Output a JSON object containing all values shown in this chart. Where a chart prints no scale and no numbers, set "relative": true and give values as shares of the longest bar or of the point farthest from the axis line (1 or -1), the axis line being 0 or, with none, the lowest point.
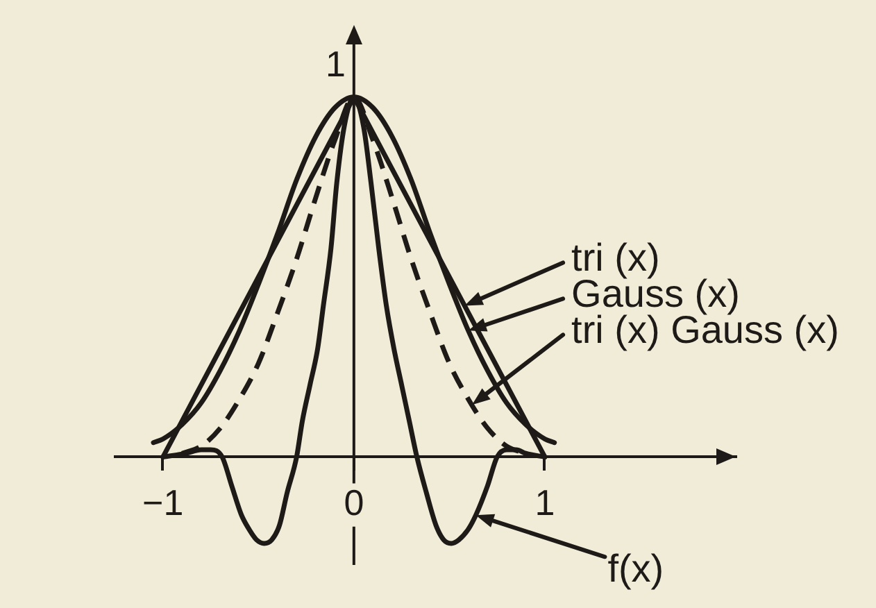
{
  "chart_data": {
    "type": "line",
    "relative": true,
    "legend": "right",
    "marker": "none",
    "xlim": [
      -1.25,
      2
    ],
    "xticks": [
      {
        "value": -1,
        "label": "−1"
      },
      0,
      1
    ],
    "series": [
      {
        "name": "tri (x)",
        "color": "#1e1a17",
        "x": [
          -1,
          0,
          1
        ],
        "values": [
          0,
          1,
          0
        ]
      },
      {
        "name": "Gauss (x)",
        "color": "#1e1a17",
        "x": [
          -1.05,
          -1,
          -0.9,
          -0.8,
          -0.7,
          -0.6,
          -0.5,
          -0.4,
          -0.3,
          -0.2,
          -0.1,
          0,
          0.1,
          0.2,
          0.3,
          0.4,
          0.5,
          0.6,
          0.7,
          0.8,
          0.9,
          1,
          1.05
        ],
        "values": [
          0.04,
          0.05,
          0.09,
          0.15,
          0.24,
          0.35,
          0.48,
          0.62,
          0.77,
          0.89,
          0.97,
          1,
          0.97,
          0.89,
          0.77,
          0.62,
          0.48,
          0.35,
          0.24,
          0.15,
          0.09,
          0.05,
          0.04
        ]
      },
      {
        "name": "tri (x) Gauss (x)",
        "color": "#1e1a17",
        "line_style": "dashed",
        "x": [
          -0.9,
          -0.8,
          -0.7,
          -0.6,
          -0.5,
          -0.4,
          -0.3,
          -0.2,
          -0.1,
          0,
          0.1,
          0.2,
          0.3,
          0.4,
          0.5,
          0.6,
          0.7,
          0.8,
          0.9
        ],
        "values": [
          0.01,
          0.03,
          0.08,
          0.16,
          0.26,
          0.4,
          0.55,
          0.72,
          0.88,
          1,
          0.88,
          0.72,
          0.55,
          0.4,
          0.26,
          0.16,
          0.08,
          0.03,
          0.01
        ]
      },
      {
        "name": "f(x)",
        "color": "#1e1a17",
        "x": [
          -1,
          -0.88,
          -0.8,
          -0.75,
          -0.69,
          -0.64,
          -0.59,
          -0.55,
          -0.51,
          -0.47,
          -0.43,
          -0.39,
          -0.35,
          -0.3,
          -0.27,
          -0.23,
          -0.19,
          -0.16,
          -0.12,
          -0.09,
          -0.05,
          0,
          0.05,
          0.09,
          0.13,
          0.17,
          0.21,
          0.25,
          0.29,
          0.33,
          0.38,
          0.43,
          0.47,
          0.51,
          0.55,
          0.6,
          0.64,
          0.7,
          0.75,
          0.8,
          0.85,
          0.9,
          1
        ],
        "values": [
          0,
          0.01,
          0.02,
          0.02,
          0,
          -0.08,
          -0.16,
          -0.2,
          -0.23,
          -0.24,
          -0.23,
          -0.19,
          -0.1,
          0,
          0.1,
          0.2,
          0.3,
          0.42,
          0.58,
          0.76,
          0.92,
          1,
          0.92,
          0.76,
          0.58,
          0.42,
          0.3,
          0.2,
          0.1,
          0,
          -0.1,
          -0.19,
          -0.23,
          -0.24,
          -0.23,
          -0.2,
          -0.16,
          -0.08,
          0,
          0.02,
          0.02,
          0.01,
          0
        ]
      }
    ],
    "annotations": [
      {
        "text": "1",
        "x": 0,
        "y": 1
      }
    ]
  }
}
